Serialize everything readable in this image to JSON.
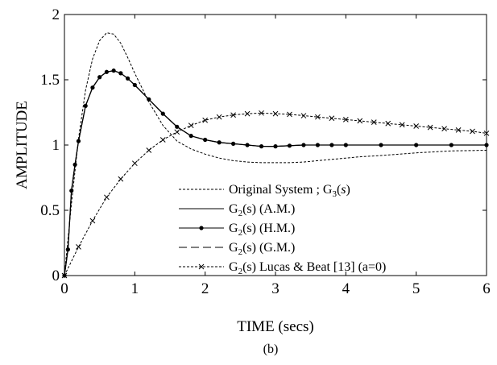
{
  "chart_data": {
    "type": "line",
    "title": "",
    "caption": "(b)",
    "xlabel": "TIME (secs)",
    "ylabel": "AMPLITUDE",
    "xlim": [
      0,
      6
    ],
    "ylim": [
      0,
      2
    ],
    "xticks": [
      0,
      1,
      2,
      3,
      4,
      5,
      6
    ],
    "yticks": [
      0,
      0.5,
      1,
      1.5,
      2
    ],
    "xtick_labels": [
      "0",
      "1",
      "2",
      "3",
      "4",
      "5",
      "6"
    ],
    "ytick_labels": [
      "0",
      "0.5",
      "1",
      "1.5",
      "2"
    ],
    "grid": false,
    "legend_position": "bottom-right",
    "series": [
      {
        "name": "Original System ; G3(s)",
        "label_parts": [
          "Original System ; G",
          "3",
          "(",
          "s",
          ")"
        ],
        "line_style": "dotted",
        "marker": "none",
        "x": [
          0,
          0.1,
          0.2,
          0.3,
          0.4,
          0.5,
          0.6,
          0.7,
          0.8,
          0.9,
          1.0,
          1.2,
          1.4,
          1.6,
          1.8,
          2.0,
          2.2,
          2.4,
          2.6,
          2.8,
          3.0,
          3.2,
          3.4,
          3.6,
          3.8,
          4.0,
          4.2,
          4.5,
          5.0,
          5.5,
          6.0
        ],
        "y": [
          0,
          0.55,
          1.05,
          1.42,
          1.66,
          1.8,
          1.86,
          1.85,
          1.78,
          1.67,
          1.55,
          1.33,
          1.15,
          1.03,
          0.97,
          0.93,
          0.9,
          0.88,
          0.87,
          0.865,
          0.865,
          0.865,
          0.87,
          0.88,
          0.89,
          0.9,
          0.91,
          0.92,
          0.94,
          0.955,
          0.96
        ]
      },
      {
        "name": "G2(s) (A.M.)",
        "label_parts": [
          "G",
          "2",
          "(s) (A.M.)"
        ],
        "line_style": "solid",
        "marker": "none",
        "x": [
          0,
          0.05,
          0.1,
          0.15,
          0.2,
          0.3,
          0.4,
          0.5,
          0.6,
          0.7,
          0.8,
          0.9,
          1.0,
          1.2,
          1.4,
          1.6,
          1.8,
          2.0,
          2.2,
          2.4,
          2.6,
          2.8,
          3.0,
          3.2,
          3.4,
          3.6,
          3.8,
          4.0,
          4.5,
          5.0,
          5.5,
          6.0
        ],
        "y": [
          0,
          0.2,
          0.65,
          0.85,
          1.03,
          1.3,
          1.44,
          1.52,
          1.56,
          1.57,
          1.55,
          1.51,
          1.46,
          1.35,
          1.24,
          1.14,
          1.07,
          1.04,
          1.02,
          1.01,
          1.0,
          0.99,
          0.99,
          0.995,
          1.0,
          1.0,
          1.0,
          1.0,
          1.0,
          1.0,
          1.0,
          1.0
        ]
      },
      {
        "name": "G2(s) (H.M.)",
        "label_parts": [
          "G",
          "2",
          "(s) (H.M.)"
        ],
        "line_style": "solid",
        "marker": "dot",
        "x": [
          0,
          0.05,
          0.1,
          0.15,
          0.2,
          0.3,
          0.4,
          0.5,
          0.6,
          0.7,
          0.8,
          0.9,
          1.0,
          1.2,
          1.4,
          1.6,
          1.8,
          2.0,
          2.2,
          2.4,
          2.6,
          2.8,
          3.0,
          3.2,
          3.4,
          3.6,
          3.8,
          4.0,
          4.5,
          5.0,
          5.5,
          6.0
        ],
        "y": [
          0,
          0.2,
          0.65,
          0.85,
          1.03,
          1.3,
          1.44,
          1.52,
          1.56,
          1.57,
          1.55,
          1.51,
          1.46,
          1.35,
          1.24,
          1.14,
          1.07,
          1.04,
          1.02,
          1.01,
          1.0,
          0.99,
          0.99,
          0.995,
          1.0,
          1.0,
          1.0,
          1.0,
          1.0,
          1.0,
          1.0,
          1.0
        ]
      },
      {
        "name": "G2(s) (G.M.)",
        "label_parts": [
          "G",
          "2",
          "(s) (G.M.)"
        ],
        "line_style": "dashed",
        "marker": "none",
        "x": [
          0,
          0.05,
          0.1,
          0.15,
          0.2,
          0.3,
          0.4,
          0.5,
          0.6,
          0.7,
          0.8,
          0.9,
          1.0,
          1.2,
          1.4,
          1.6,
          1.8,
          2.0,
          2.2,
          2.4,
          2.6,
          2.8,
          3.0,
          3.2,
          3.4,
          3.6,
          3.8,
          4.0,
          4.5,
          5.0,
          5.5,
          6.0
        ],
        "y": [
          0,
          0.2,
          0.65,
          0.85,
          1.03,
          1.3,
          1.44,
          1.52,
          1.56,
          1.57,
          1.55,
          1.51,
          1.46,
          1.35,
          1.24,
          1.14,
          1.07,
          1.04,
          1.02,
          1.01,
          1.0,
          0.99,
          0.99,
          0.995,
          1.0,
          1.0,
          1.0,
          1.0,
          1.0,
          1.0,
          1.0,
          1.0
        ]
      },
      {
        "name": "G2(s) Lucas & Beat [13] (a=0)",
        "label_parts": [
          "G",
          "2",
          "(s) Lucas & Beat [13] (a=0)"
        ],
        "line_style": "dotted",
        "marker": "x",
        "x": [
          0,
          0.2,
          0.4,
          0.6,
          0.8,
          1.0,
          1.2,
          1.4,
          1.6,
          1.8,
          2.0,
          2.2,
          2.4,
          2.6,
          2.8,
          3.0,
          3.2,
          3.4,
          3.6,
          3.8,
          4.0,
          4.2,
          4.4,
          4.6,
          4.8,
          5.0,
          5.2,
          5.4,
          5.6,
          5.8,
          6.0
        ],
        "y": [
          0,
          0.22,
          0.42,
          0.6,
          0.74,
          0.86,
          0.96,
          1.04,
          1.1,
          1.15,
          1.19,
          1.215,
          1.23,
          1.24,
          1.245,
          1.24,
          1.235,
          1.225,
          1.215,
          1.205,
          1.195,
          1.185,
          1.175,
          1.165,
          1.155,
          1.145,
          1.135,
          1.125,
          1.115,
          1.105,
          1.09
        ]
      }
    ]
  }
}
